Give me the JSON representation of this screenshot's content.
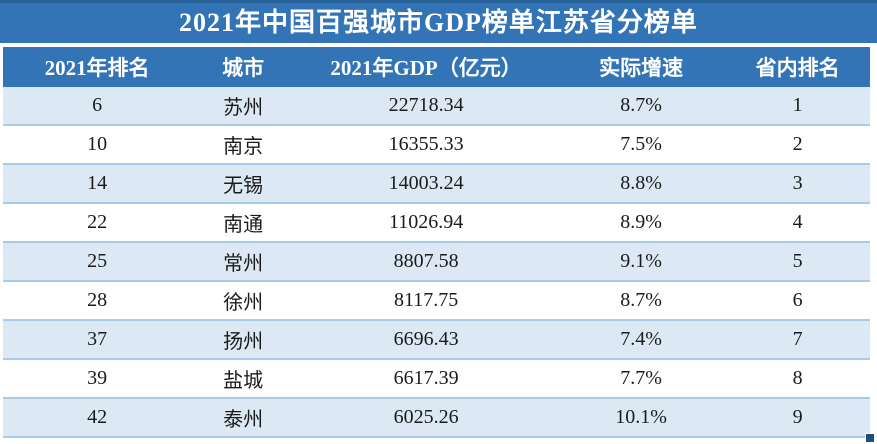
{
  "chart_data": {
    "type": "table",
    "title": "2021年中国百强城市GDP榜单江苏省分榜单",
    "headers": [
      "2021年排名",
      "城市",
      "2021年GDP（亿元）",
      "实际增速",
      "省内排名"
    ],
    "rows": [
      [
        "6",
        "苏州",
        "22718.34",
        "8.7%",
        "1"
      ],
      [
        "10",
        "南京",
        "16355.33",
        "7.5%",
        "2"
      ],
      [
        "14",
        "无锡",
        "14003.24",
        "8.8%",
        "3"
      ],
      [
        "22",
        "南通",
        "11026.94",
        "8.9%",
        "4"
      ],
      [
        "25",
        "常州",
        "8807.58",
        "9.1%",
        "5"
      ],
      [
        "28",
        "徐州",
        "8117.75",
        "8.7%",
        "6"
      ],
      [
        "37",
        "扬州",
        "6696.43",
        "7.4%",
        "7"
      ],
      [
        "39",
        "盐城",
        "6617.39",
        "7.7%",
        "8"
      ],
      [
        "42",
        "泰州",
        "6025.26",
        "10.1%",
        "9"
      ]
    ]
  },
  "colors": {
    "title_bar_bg": "#3274b5",
    "title_top_border": "#266198",
    "header_bg": "#3274b5",
    "header_text": "#ffffff",
    "row_alt_bg": "#dce9f5",
    "row_bg": "#ffffff",
    "row_separator": "#a8cbe8",
    "body_text": "#1b1b1b",
    "fill_handle": "#1f4e7a"
  }
}
